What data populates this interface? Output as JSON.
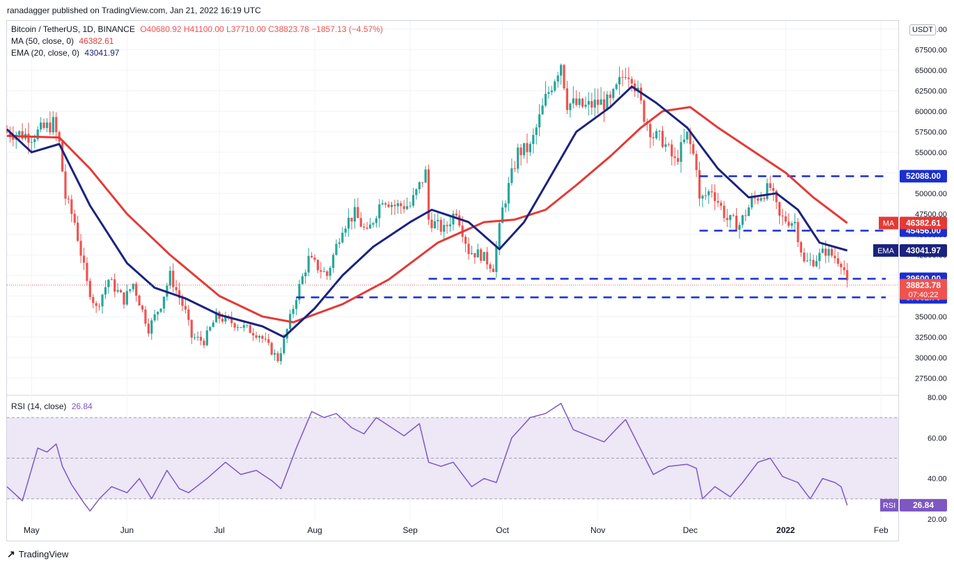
{
  "header": {
    "published": "ranadagger published on TradingView.com, Jan 21, 2022 16:19 UTC"
  },
  "legend": {
    "symbol": "Bitcoin / TetherUS, 1D, BINANCE",
    "ohlc": "O40680.92  H41100.00  L37710.00  C38823.78  −1857.13 (−4.57%)",
    "ma_label": "MA (50, close, 0)",
    "ma_value": "46382.61",
    "ema_label": "EMA (20, close, 0)",
    "ema_value": "43041.97"
  },
  "rsi_legend": {
    "label": "RSI (14, close)",
    "value": "26.84"
  },
  "currency": "USDT",
  "footer": {
    "brand": "TradingView"
  },
  "colors": {
    "up": "#26a69a",
    "down": "#ef5350",
    "ma": "#e53935",
    "ema": "#1a237e",
    "level": "#1a2fcf",
    "rsi": "#7e57c2",
    "rsi_band": "#ede7f6"
  },
  "chart_data": [
    {
      "type": "line",
      "title": "Bitcoin / TetherUS, 1D, BINANCE",
      "x_ticks": [
        "May",
        "Jun",
        "Jul",
        "Aug",
        "Sep",
        "Oct",
        "Nov",
        "Dec",
        "2022",
        "Feb"
      ],
      "y_ticks": [
        "27500.00",
        "30000.00",
        "32500.00",
        "35000.00",
        "37500.00",
        "40000.00",
        "42500.00",
        "45000.00",
        "47500.00",
        "50000.00",
        "52500.00",
        "55000.00",
        "57500.00",
        "60000.00",
        "62500.00",
        "65000.00",
        "67500.00",
        "70000.00"
      ],
      "ylim": [
        25500,
        71000
      ],
      "price_path": [
        [
          "2021-04-23",
          57500
        ],
        [
          "2021-05-01",
          57000
        ],
        [
          "2021-05-08",
          58500
        ],
        [
          "2021-05-10",
          56000
        ],
        [
          "2021-05-12",
          49500
        ],
        [
          "2021-05-15",
          46500
        ],
        [
          "2021-05-19",
          39000
        ],
        [
          "2021-05-22",
          36000
        ],
        [
          "2021-05-26",
          39500
        ],
        [
          "2021-05-31",
          37000
        ],
        [
          "2021-06-03",
          39000
        ],
        [
          "2021-06-08",
          33500
        ],
        [
          "2021-06-12",
          36500
        ],
        [
          "2021-06-15",
          40000
        ],
        [
          "2021-06-20",
          35500
        ],
        [
          "2021-06-22",
          32500
        ],
        [
          "2021-06-26",
          32000
        ],
        [
          "2021-06-30",
          35000
        ],
        [
          "2021-07-07",
          34000
        ],
        [
          "2021-07-14",
          32800
        ],
        [
          "2021-07-20",
          29800
        ],
        [
          "2021-07-22",
          32000
        ],
        [
          "2021-07-26",
          37500
        ],
        [
          "2021-07-30",
          42000
        ],
        [
          "2021-08-05",
          40000
        ],
        [
          "2021-08-10",
          46000
        ],
        [
          "2021-08-14",
          47500
        ],
        [
          "2021-08-18",
          45000
        ],
        [
          "2021-08-23",
          49500
        ],
        [
          "2021-08-27",
          48500
        ],
        [
          "2021-09-01",
          48500
        ],
        [
          "2021-09-06",
          52500
        ],
        [
          "2021-09-07",
          46800
        ],
        [
          "2021-09-12",
          45500
        ],
        [
          "2021-09-16",
          48000
        ],
        [
          "2021-09-20",
          43000
        ],
        [
          "2021-09-24",
          42500
        ],
        [
          "2021-09-28",
          41000
        ],
        [
          "2021-10-01",
          48000
        ],
        [
          "2021-10-06",
          55000
        ],
        [
          "2021-10-10",
          55500
        ],
        [
          "2021-10-15",
          61500
        ],
        [
          "2021-10-20",
          66000
        ],
        [
          "2021-10-22",
          61000
        ],
        [
          "2021-10-28",
          60500
        ],
        [
          "2021-11-01",
          61000
        ],
        [
          "2021-11-05",
          61000
        ],
        [
          "2021-11-10",
          65000
        ],
        [
          "2021-11-12",
          64500
        ],
        [
          "2021-11-16",
          59500
        ],
        [
          "2021-11-19",
          57000
        ],
        [
          "2021-11-22",
          56500
        ],
        [
          "2021-11-26",
          53800
        ],
        [
          "2021-11-30",
          57000
        ],
        [
          "2021-12-03",
          53500
        ],
        [
          "2021-12-04",
          49000
        ],
        [
          "2021-12-08",
          50500
        ],
        [
          "2021-12-13",
          46800
        ],
        [
          "2021-12-17",
          46200
        ],
        [
          "2021-12-21",
          49000
        ],
        [
          "2021-12-27",
          50700
        ],
        [
          "2021-12-30",
          47000
        ],
        [
          "2022-01-04",
          46500
        ],
        [
          "2022-01-07",
          41500
        ],
        [
          "2022-01-10",
          41800
        ],
        [
          "2022-01-14",
          43000
        ],
        [
          "2022-01-17",
          42200
        ],
        [
          "2022-01-19",
          41700
        ],
        [
          "2022-01-20",
          40680
        ],
        [
          "2022-01-21",
          38824
        ]
      ],
      "ma50": {
        "name": "MA (50, close, 0)",
        "points": [
          [
            "2021-04-23",
            57000
          ],
          [
            "2021-05-10",
            56800
          ],
          [
            "2021-05-20",
            53000
          ],
          [
            "2021-06-01",
            47500
          ],
          [
            "2021-06-15",
            42500
          ],
          [
            "2021-07-01",
            37500
          ],
          [
            "2021-07-15",
            35000
          ],
          [
            "2021-07-25",
            34300
          ],
          [
            "2021-08-10",
            36500
          ],
          [
            "2021-08-25",
            39500
          ],
          [
            "2021-09-10",
            44000
          ],
          [
            "2021-09-25",
            46500
          ],
          [
            "2021-10-05",
            46800
          ],
          [
            "2021-10-15",
            48000
          ],
          [
            "2021-10-25",
            51000
          ],
          [
            "2021-11-05",
            54500
          ],
          [
            "2021-11-15",
            58000
          ],
          [
            "2021-11-22",
            60000
          ],
          [
            "2021-12-01",
            60500
          ],
          [
            "2021-12-10",
            58000
          ],
          [
            "2021-12-20",
            55500
          ],
          [
            "2022-01-01",
            52500
          ],
          [
            "2022-01-10",
            49500
          ],
          [
            "2022-01-21",
            46383
          ]
        ]
      },
      "ema20": {
        "name": "EMA (20, close, 0)",
        "points": [
          [
            "2021-04-23",
            57800
          ],
          [
            "2021-05-01",
            55000
          ],
          [
            "2021-05-10",
            56000
          ],
          [
            "2021-05-20",
            48500
          ],
          [
            "2021-06-01",
            41500
          ],
          [
            "2021-06-10",
            38500
          ],
          [
            "2021-06-20",
            37200
          ],
          [
            "2021-07-01",
            35200
          ],
          [
            "2021-07-15",
            33800
          ],
          [
            "2021-07-22",
            32500
          ],
          [
            "2021-08-01",
            36000
          ],
          [
            "2021-08-10",
            40000
          ],
          [
            "2021-08-20",
            43500
          ],
          [
            "2021-09-01",
            46500
          ],
          [
            "2021-09-08",
            48000
          ],
          [
            "2021-09-20",
            46500
          ],
          [
            "2021-09-30",
            43200
          ],
          [
            "2021-10-08",
            46500
          ],
          [
            "2021-10-15",
            51000
          ],
          [
            "2021-10-25",
            57500
          ],
          [
            "2021-11-05",
            60500
          ],
          [
            "2021-11-12",
            63000
          ],
          [
            "2021-11-20",
            61000
          ],
          [
            "2021-11-30",
            58000
          ],
          [
            "2021-12-10",
            53000
          ],
          [
            "2021-12-20",
            49500
          ],
          [
            "2021-12-29",
            50000
          ],
          [
            "2022-01-05",
            48000
          ],
          [
            "2022-01-12",
            44000
          ],
          [
            "2022-01-21",
            43042
          ]
        ]
      },
      "levels": [
        {
          "value": 52088,
          "label": "52088.00",
          "from": "2021-12-04"
        },
        {
          "value": 45456,
          "label": "45456.00",
          "from": "2021-12-04"
        },
        {
          "value": 39600,
          "label": "39600.00",
          "from": "2021-09-07"
        },
        {
          "value": 37332.7,
          "label": "37332.70",
          "from": "2021-07-26"
        }
      ],
      "price_labels": [
        {
          "text": "MA",
          "value": "46382.61"
        },
        {
          "text": "EMA",
          "value": "43041.97"
        },
        {
          "text": "",
          "value": "38823.78",
          "sub": "07:40:22"
        }
      ],
      "last_price": 38823.78,
      "grid": true
    },
    {
      "type": "line",
      "title": "RSI (14, close)",
      "y_ticks": [
        "20.00",
        "40.00",
        "60.00",
        "80.00"
      ],
      "ylim": [
        19,
        81
      ],
      "band": [
        30,
        70
      ],
      "midline": 50,
      "series": [
        {
          "name": "RSI (14, close)",
          "points": [
            [
              "2021-04-23",
              36
            ],
            [
              "2021-04-28",
              29
            ],
            [
              "2021-05-03",
              55
            ],
            [
              "2021-05-06",
              53
            ],
            [
              "2021-05-09",
              57
            ],
            [
              "2021-05-11",
              46
            ],
            [
              "2021-05-14",
              37
            ],
            [
              "2021-05-18",
              28
            ],
            [
              "2021-05-20",
              24
            ],
            [
              "2021-05-23",
              30
            ],
            [
              "2021-05-27",
              36
            ],
            [
              "2021-06-01",
              33
            ],
            [
              "2021-06-05",
              40
            ],
            [
              "2021-06-09",
              30
            ],
            [
              "2021-06-14",
              44
            ],
            [
              "2021-06-18",
              35
            ],
            [
              "2021-06-21",
              33
            ],
            [
              "2021-06-27",
              40
            ],
            [
              "2021-07-03",
              48
            ],
            [
              "2021-07-08",
              42
            ],
            [
              "2021-07-13",
              44
            ],
            [
              "2021-07-18",
              39
            ],
            [
              "2021-07-21",
              35
            ],
            [
              "2021-07-26",
              55
            ],
            [
              "2021-07-31",
              73
            ],
            [
              "2021-08-04",
              70
            ],
            [
              "2021-08-08",
              72
            ],
            [
              "2021-08-13",
              65
            ],
            [
              "2021-08-17",
              62
            ],
            [
              "2021-08-21",
              70
            ],
            [
              "2021-08-25",
              66
            ],
            [
              "2021-08-30",
              61
            ],
            [
              "2021-09-04",
              67
            ],
            [
              "2021-09-07",
              48
            ],
            [
              "2021-09-11",
              46
            ],
            [
              "2021-09-15",
              48
            ],
            [
              "2021-09-21",
              36
            ],
            [
              "2021-09-25",
              40
            ],
            [
              "2021-09-29",
              38
            ],
            [
              "2021-10-04",
              60
            ],
            [
              "2021-10-10",
              70
            ],
            [
              "2021-10-15",
              72
            ],
            [
              "2021-10-20",
              77
            ],
            [
              "2021-10-24",
              64
            ],
            [
              "2021-10-29",
              61
            ],
            [
              "2021-11-03",
              58
            ],
            [
              "2021-11-08",
              66
            ],
            [
              "2021-11-10",
              69
            ],
            [
              "2021-11-15",
              54
            ],
            [
              "2021-11-19",
              42
            ],
            [
              "2021-11-24",
              46
            ],
            [
              "2021-11-30",
              47
            ],
            [
              "2021-12-03",
              45
            ],
            [
              "2021-12-05",
              30
            ],
            [
              "2021-12-09",
              36
            ],
            [
              "2021-12-14",
              31
            ],
            [
              "2021-12-18",
              38
            ],
            [
              "2021-12-23",
              48
            ],
            [
              "2021-12-27",
              50
            ],
            [
              "2021-12-31",
              41
            ],
            [
              "2022-01-05",
              38
            ],
            [
              "2022-01-09",
              30
            ],
            [
              "2022-01-13",
              40
            ],
            [
              "2022-01-17",
              38
            ],
            [
              "2022-01-19",
              36
            ],
            [
              "2022-01-21",
              26.84
            ]
          ]
        }
      ]
    }
  ]
}
